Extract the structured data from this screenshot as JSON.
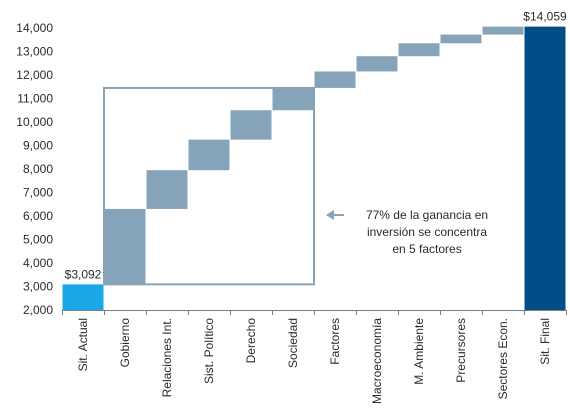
{
  "chart_data": {
    "type": "waterfall",
    "title": "",
    "xlabel": "",
    "ylabel": "",
    "ylim": [
      2000,
      14000
    ],
    "yticks": [
      2000,
      3000,
      4000,
      5000,
      6000,
      7000,
      8000,
      9000,
      10000,
      11000,
      12000,
      13000,
      14000
    ],
    "ytick_labels": [
      "2,000",
      "3,000",
      "4,000",
      "5,000",
      "6,000",
      "7,000",
      "8,000",
      "9,000",
      "10,000",
      "11,000",
      "12,000",
      "13,000",
      "14,000"
    ],
    "grid": false,
    "categories": [
      "Sit. Actual",
      "Gobierno",
      "Relaciones Int.",
      "Sist. Político",
      "Derecho",
      "Sociedad",
      "Factores",
      "Macroeconomía",
      "M. Ambiente",
      "Precursores",
      "Sectores Econ.",
      "Sit. Final"
    ],
    "bars": [
      {
        "category": "Sit. Actual",
        "kind": "total",
        "start": 2000,
        "end": 3092,
        "label": "$3,092"
      },
      {
        "category": "Gobierno",
        "kind": "step",
        "start": 3092,
        "end": 6300
      },
      {
        "category": "Relaciones Int.",
        "kind": "step",
        "start": 6300,
        "end": 7950
      },
      {
        "category": "Sist. Político",
        "kind": "step",
        "start": 7950,
        "end": 9250
      },
      {
        "category": "Derecho",
        "kind": "step",
        "start": 9250,
        "end": 10500
      },
      {
        "category": "Sociedad",
        "kind": "step",
        "start": 10500,
        "end": 11450
      },
      {
        "category": "Factores",
        "kind": "step",
        "start": 11450,
        "end": 12150
      },
      {
        "category": "Macroeconomía",
        "kind": "step",
        "start": 12150,
        "end": 12800
      },
      {
        "category": "M. Ambiente",
        "kind": "step",
        "start": 12800,
        "end": 13350
      },
      {
        "category": "Precursores",
        "kind": "step",
        "start": 13350,
        "end": 13720
      },
      {
        "category": "Sectores Econ.",
        "kind": "step",
        "start": 13720,
        "end": 14059
      },
      {
        "category": "Sit. Final",
        "kind": "total",
        "start": 2000,
        "end": 14059,
        "label": "$14,059"
      }
    ],
    "highlight": {
      "first_category": "Gobierno",
      "last_category": "Sociedad",
      "y_from": 3092,
      "y_to": 11450
    },
    "annotation": {
      "lines": [
        "77% de la ganancia en",
        "inversión se concentra",
        "en 5 factores"
      ],
      "points_to": "highlight"
    },
    "colors": {
      "start": "#1aa7e8",
      "step": "#86a4b9",
      "end": "#004d87",
      "box": "#86a4b9",
      "axis": "#7f7f7f"
    }
  }
}
